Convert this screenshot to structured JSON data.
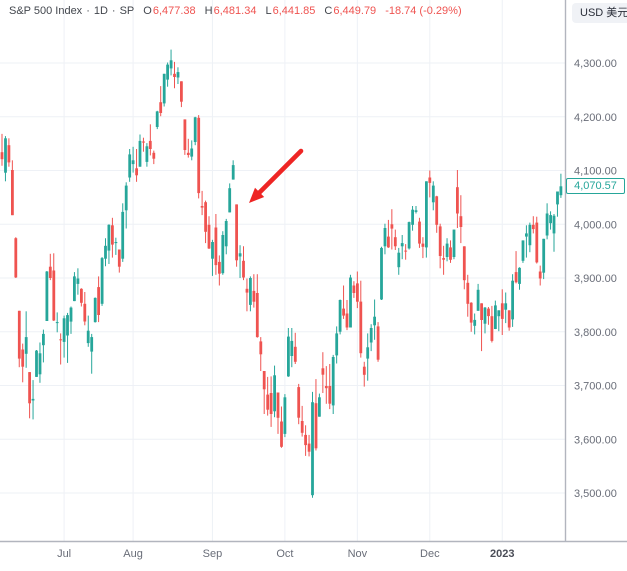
{
  "header": {
    "symbol": "S&P 500 Index",
    "separator": "·",
    "interval": "1D",
    "exchange": "SP",
    "ohlc": {
      "open_label": "O",
      "open": "6,477.38",
      "high_label": "H",
      "high": "6,481.34",
      "low_label": "L",
      "low": "6,441.85",
      "close_label": "C",
      "close": "6,449.79",
      "change": "-18.74 (-0.29%)"
    }
  },
  "currency_chip": {
    "label": "USD 美元"
  },
  "price_axis": {
    "last_price": "4,070.57",
    "labels": [
      {
        "text": "4,300.00",
        "value": 4300
      },
      {
        "text": "4,200.00",
        "value": 4200
      },
      {
        "text": "4,100.00",
        "value": 4100
      },
      {
        "text": "4,000.00",
        "value": 4000
      },
      {
        "text": "3,900.00",
        "value": 3900
      },
      {
        "text": "3,800.00",
        "value": 3800
      },
      {
        "text": "3,700.00",
        "value": 3700
      },
      {
        "text": "3,600.00",
        "value": 3600
      },
      {
        "text": "3,500.00",
        "value": 3500
      }
    ]
  },
  "time_axis": {
    "labels": [
      {
        "label": "Jul",
        "index": 18,
        "year": false
      },
      {
        "label": "Aug",
        "index": 38,
        "year": false
      },
      {
        "label": "Sep",
        "index": 61,
        "year": false
      },
      {
        "label": "Oct",
        "index": 82,
        "year": false
      },
      {
        "label": "Nov",
        "index": 103,
        "year": false
      },
      {
        "label": "Dec",
        "index": 124,
        "year": false
      },
      {
        "label": "2023",
        "index": 145,
        "year": true
      }
    ]
  },
  "colors": {
    "up": "#26a69a",
    "down": "#ef5350",
    "grid": "#eef1f6",
    "axis_line": "#b2b5be",
    "axis_text": "#696d78",
    "year_text": "#4a4d57",
    "arrow": "#ee2524",
    "badge": "#26a69a"
  },
  "annotation_arrow": {
    "from": [
      301,
      151
    ],
    "to": [
      249,
      203
    ]
  },
  "chart_data": {
    "type": "candlestick",
    "title": "S&P 500 Index",
    "interval": "1D",
    "exchange": "SP",
    "currency": "USD",
    "last_close": 4070.57,
    "ylim": [
      3450,
      4360
    ],
    "y_ticks": [
      3500,
      3600,
      3700,
      3800,
      3900,
      4000,
      4100,
      4200,
      4300
    ],
    "x_tick_labels": [
      "Jul",
      "Aug",
      "Sep",
      "Oct",
      "Nov",
      "Dec",
      "2023"
    ],
    "grid": true,
    "dates": [
      "2022-06-06",
      "2022-06-07",
      "2022-06-08",
      "2022-06-09",
      "2022-06-10",
      "2022-06-13",
      "2022-06-14",
      "2022-06-15",
      "2022-06-16",
      "2022-06-17",
      "2022-06-21",
      "2022-06-22",
      "2022-06-23",
      "2022-06-24",
      "2022-06-27",
      "2022-06-28",
      "2022-06-29",
      "2022-06-30",
      "2022-07-01",
      "2022-07-05",
      "2022-07-06",
      "2022-07-07",
      "2022-07-08",
      "2022-07-11",
      "2022-07-12",
      "2022-07-13",
      "2022-07-14",
      "2022-07-15",
      "2022-07-18",
      "2022-07-19",
      "2022-07-20",
      "2022-07-21",
      "2022-07-22",
      "2022-07-25",
      "2022-07-26",
      "2022-07-27",
      "2022-07-28",
      "2022-07-29",
      "2022-08-01",
      "2022-08-02",
      "2022-08-03",
      "2022-08-04",
      "2022-08-05",
      "2022-08-08",
      "2022-08-09",
      "2022-08-10",
      "2022-08-11",
      "2022-08-12",
      "2022-08-15",
      "2022-08-16",
      "2022-08-17",
      "2022-08-18",
      "2022-08-19",
      "2022-08-22",
      "2022-08-23",
      "2022-08-24",
      "2022-08-25",
      "2022-08-26",
      "2022-08-29",
      "2022-08-30",
      "2022-08-31",
      "2022-09-01",
      "2022-09-02",
      "2022-09-06",
      "2022-09-07",
      "2022-09-08",
      "2022-09-09",
      "2022-09-12",
      "2022-09-13",
      "2022-09-14",
      "2022-09-15",
      "2022-09-16",
      "2022-09-19",
      "2022-09-20",
      "2022-09-21",
      "2022-09-22",
      "2022-09-23",
      "2022-09-26",
      "2022-09-27",
      "2022-09-28",
      "2022-09-29",
      "2022-09-30",
      "2022-10-03",
      "2022-10-04",
      "2022-10-05",
      "2022-10-06",
      "2022-10-07",
      "2022-10-10",
      "2022-10-11",
      "2022-10-12",
      "2022-10-13",
      "2022-10-14",
      "2022-10-17",
      "2022-10-18",
      "2022-10-19",
      "2022-10-20",
      "2022-10-21",
      "2022-10-24",
      "2022-10-25",
      "2022-10-26",
      "2022-10-27",
      "2022-10-28",
      "2022-10-31",
      "2022-11-01",
      "2022-11-02",
      "2022-11-03",
      "2022-11-04",
      "2022-11-07",
      "2022-11-08",
      "2022-11-09",
      "2022-11-10",
      "2022-11-11",
      "2022-11-14",
      "2022-11-15",
      "2022-11-16",
      "2022-11-17",
      "2022-11-18",
      "2022-11-21",
      "2022-11-22",
      "2022-11-23",
      "2022-11-25",
      "2022-11-28",
      "2022-11-29",
      "2022-11-30",
      "2022-12-01",
      "2022-12-02",
      "2022-12-05",
      "2022-12-06",
      "2022-12-07",
      "2022-12-08",
      "2022-12-09",
      "2022-12-12",
      "2022-12-13",
      "2022-12-14",
      "2022-12-15",
      "2022-12-16",
      "2022-12-19",
      "2022-12-20",
      "2022-12-21",
      "2022-12-22",
      "2022-12-23",
      "2022-12-27",
      "2022-12-28",
      "2022-12-29",
      "2022-12-30",
      "2023-01-03",
      "2023-01-04",
      "2023-01-05",
      "2023-01-06",
      "2023-01-09",
      "2023-01-10",
      "2023-01-11",
      "2023-01-12",
      "2023-01-13",
      "2023-01-17",
      "2023-01-18",
      "2023-01-19",
      "2023-01-20",
      "2023-01-23",
      "2023-01-24",
      "2023-01-25",
      "2023-01-26",
      "2023-01-27"
    ],
    "ohlc": [
      [
        4134,
        4168,
        4109,
        4121
      ],
      [
        4096,
        4164,
        4080,
        4160
      ],
      [
        4147,
        4160,
        4107,
        4115
      ],
      [
        4101,
        4119,
        4017,
        4017
      ],
      [
        3974,
        3976,
        3900,
        3901
      ],
      [
        3839,
        3839,
        3734,
        3750
      ],
      [
        3767,
        3778,
        3706,
        3735
      ],
      [
        3759,
        3838,
        3733,
        3790
      ],
      [
        3725,
        3725,
        3639,
        3667
      ],
      [
        3672,
        3710,
        3637,
        3675
      ],
      [
        3716,
        3766,
        3716,
        3765
      ],
      [
        3721,
        3780,
        3705,
        3760
      ],
      [
        3775,
        3804,
        3743,
        3796
      ],
      [
        3820,
        3913,
        3820,
        3912
      ],
      [
        3921,
        3945,
        3896,
        3900
      ],
      [
        3914,
        3946,
        3820,
        3821
      ],
      [
        3818,
        3836,
        3799,
        3818
      ],
      [
        3786,
        3797,
        3739,
        3785
      ],
      [
        3781,
        3830,
        3752,
        3825
      ],
      [
        3793,
        3835,
        3742,
        3831
      ],
      [
        3819,
        3847,
        3796,
        3845
      ],
      [
        3857,
        3911,
        3857,
        3903
      ],
      [
        3889,
        3918,
        3869,
        3899
      ],
      [
        3880,
        3881,
        3847,
        3854
      ],
      [
        3852,
        3874,
        3812,
        3819
      ],
      [
        3779,
        3830,
        3772,
        3802
      ],
      [
        3763,
        3796,
        3722,
        3790
      ],
      [
        3818,
        3864,
        3817,
        3863
      ],
      [
        3883,
        3903,
        3818,
        3831
      ],
      [
        3852,
        3939,
        3848,
        3937
      ],
      [
        3936,
        3974,
        3922,
        3960
      ],
      [
        3951,
        4000,
        3926,
        3999
      ],
      [
        3998,
        4012,
        3938,
        3962
      ],
      [
        3965,
        3975,
        3943,
        3967
      ],
      [
        3953,
        3953,
        3910,
        3921
      ],
      [
        3936,
        4039,
        3930,
        4023
      ],
      [
        4026,
        4078,
        3992,
        4072
      ],
      [
        4087,
        4140,
        4079,
        4130
      ],
      [
        4112,
        4144,
        4096,
        4119
      ],
      [
        4104,
        4140,
        4079,
        4091
      ],
      [
        4107,
        4167,
        4107,
        4155
      ],
      [
        4154,
        4161,
        4135,
        4152
      ],
      [
        4116,
        4151,
        4107,
        4145
      ],
      [
        4155,
        4186,
        4128,
        4140
      ],
      [
        4133,
        4137,
        4112,
        4122
      ],
      [
        4181,
        4211,
        4177,
        4210
      ],
      [
        4227,
        4257,
        4201,
        4207
      ],
      [
        4225,
        4280,
        4219,
        4280
      ],
      [
        4269,
        4301,
        4256,
        4297
      ],
      [
        4290,
        4325,
        4277,
        4305
      ],
      [
        4280,
        4302,
        4253,
        4274
      ],
      [
        4273,
        4292,
        4261,
        4283
      ],
      [
        4266,
        4266,
        4218,
        4228
      ],
      [
        4195,
        4195,
        4129,
        4138
      ],
      [
        4133,
        4159,
        4124,
        4129
      ],
      [
        4126,
        4156,
        4119,
        4141
      ],
      [
        4153,
        4200,
        4147,
        4199
      ],
      [
        4198,
        4203,
        4048,
        4058
      ],
      [
        4034,
        4062,
        4017,
        4031
      ],
      [
        4041,
        4044,
        3965,
        3986
      ],
      [
        3999,
        4015,
        3954,
        3955
      ],
      [
        3936,
        3971,
        3904,
        3967
      ],
      [
        3994,
        4019,
        3906,
        3924
      ],
      [
        3930,
        3942,
        3886,
        3908
      ],
      [
        3909,
        3987,
        3906,
        3980
      ],
      [
        3959,
        4010,
        3944,
        4006
      ],
      [
        4022,
        4076,
        4022,
        4067
      ],
      [
        4083,
        4119,
        4083,
        4110
      ],
      [
        4037,
        4037,
        3921,
        3933
      ],
      [
        3940,
        3961,
        3900,
        3946
      ],
      [
        3932,
        3959,
        3896,
        3901
      ],
      [
        3880,
        3899,
        3838,
        3873
      ],
      [
        3850,
        3903,
        3838,
        3900
      ],
      [
        3876,
        3907,
        3845,
        3856
      ],
      [
        3872,
        3907,
        3789,
        3790
      ],
      [
        3782,
        3790,
        3727,
        3758
      ],
      [
        3727,
        3727,
        3647,
        3693
      ],
      [
        3683,
        3716,
        3644,
        3655
      ],
      [
        3686,
        3717,
        3623,
        3647
      ],
      [
        3652,
        3737,
        3641,
        3719
      ],
      [
        3687,
        3687,
        3610,
        3640
      ],
      [
        3633,
        3661,
        3584,
        3586
      ],
      [
        3610,
        3684,
        3604,
        3678
      ],
      [
        3717,
        3807,
        3716,
        3791
      ],
      [
        3755,
        3807,
        3734,
        3783
      ],
      [
        3772,
        3798,
        3740,
        3744
      ],
      [
        3697,
        3703,
        3628,
        3640
      ],
      [
        3634,
        3662,
        3605,
        3612
      ],
      [
        3608,
        3626,
        3569,
        3589
      ],
      [
        3592,
        3608,
        3568,
        3577
      ],
      [
        3496,
        3688,
        3491,
        3669
      ],
      [
        3667,
        3712,
        3579,
        3583
      ],
      [
        3642,
        3685,
        3642,
        3678
      ],
      [
        3732,
        3762,
        3686,
        3720
      ],
      [
        3699,
        3736,
        3666,
        3695
      ],
      [
        3699,
        3740,
        3656,
        3666
      ],
      [
        3663,
        3757,
        3647,
        3753
      ],
      [
        3756,
        3810,
        3741,
        3797
      ],
      [
        3800,
        3860,
        3795,
        3859
      ],
      [
        3843,
        3886,
        3824,
        3830
      ],
      [
        3834,
        3859,
        3803,
        3808
      ],
      [
        3808,
        3906,
        3808,
        3901
      ],
      [
        3886,
        3894,
        3863,
        3872
      ],
      [
        3890,
        3912,
        3844,
        3856
      ],
      [
        3856,
        3895,
        3752,
        3760
      ],
      [
        3735,
        3744,
        3698,
        3720
      ],
      [
        3750,
        3797,
        3709,
        3771
      ],
      [
        3780,
        3814,
        3764,
        3807
      ],
      [
        3812,
        3860,
        3785,
        3828
      ],
      [
        3810,
        3818,
        3744,
        3748
      ],
      [
        3860,
        3958,
        3859,
        3956
      ],
      [
        3959,
        4001,
        3944,
        3993
      ],
      [
        3977,
        4008,
        3956,
        3957
      ],
      [
        4000,
        4028,
        3953,
        3992
      ],
      [
        3976,
        3990,
        3952,
        3959
      ],
      [
        3920,
        3956,
        3906,
        3947
      ],
      [
        3959,
        3980,
        3935,
        3965
      ],
      [
        3951,
        3963,
        3934,
        3950
      ],
      [
        3955,
        4005,
        3953,
        4004
      ],
      [
        3999,
        4034,
        3988,
        4027
      ],
      [
        4023,
        4034,
        4020,
        4026
      ],
      [
        4005,
        4012,
        3956,
        3964
      ],
      [
        3964,
        3976,
        3937,
        3958
      ],
      [
        3957,
        4080,
        3938,
        4080
      ],
      [
        4087,
        4100,
        4050,
        4077
      ],
      [
        4041,
        4080,
        4026,
        4072
      ],
      [
        4052,
        4053,
        3984,
        3999
      ],
      [
        3996,
        4001,
        3918,
        3941
      ],
      [
        3937,
        3960,
        3906,
        3934
      ],
      [
        3939,
        3974,
        3931,
        3964
      ],
      [
        3957,
        3970,
        3928,
        3934
      ],
      [
        3939,
        3990,
        3935,
        3990
      ],
      [
        4069,
        4101,
        3993,
        4020
      ],
      [
        4015,
        4054,
        3965,
        3995
      ],
      [
        3959,
        3959,
        3879,
        3896
      ],
      [
        3891,
        3906,
        3828,
        3852
      ],
      [
        3854,
        3855,
        3800,
        3817
      ],
      [
        3811,
        3834,
        3795,
        3822
      ],
      [
        3839,
        3889,
        3839,
        3878
      ],
      [
        3853,
        3853,
        3764,
        3822
      ],
      [
        3815,
        3846,
        3797,
        3845
      ],
      [
        3843,
        3846,
        3813,
        3829
      ],
      [
        3829,
        3848,
        3780,
        3783
      ],
      [
        3805,
        3858,
        3805,
        3849
      ],
      [
        3829,
        3840,
        3801,
        3840
      ],
      [
        3853,
        3879,
        3794,
        3824
      ],
      [
        3841,
        3873,
        3816,
        3853
      ],
      [
        3840,
        3840,
        3802,
        3808
      ],
      [
        3823,
        3907,
        3809,
        3895
      ],
      [
        3911,
        3950,
        3890,
        3892
      ],
      [
        3889,
        3920,
        3878,
        3919
      ],
      [
        3932,
        3970,
        3928,
        3970
      ],
      [
        3977,
        3998,
        3938,
        3983
      ],
      [
        3961,
        4003,
        3948,
        3999
      ],
      [
        3999,
        4015,
        3983,
        3991
      ],
      [
        4003,
        4014,
        3927,
        3929
      ],
      [
        3912,
        3923,
        3886,
        3899
      ],
      [
        3910,
        3973,
        3898,
        3973
      ],
      [
        3979,
        4039,
        3972,
        4020
      ],
      [
        4002,
        4024,
        3990,
        4017
      ],
      [
        3983,
        4019,
        3949,
        4016
      ],
      [
        4037,
        4061,
        4014,
        4061
      ],
      [
        4054,
        4094,
        4049,
        4070.57
      ]
    ]
  }
}
